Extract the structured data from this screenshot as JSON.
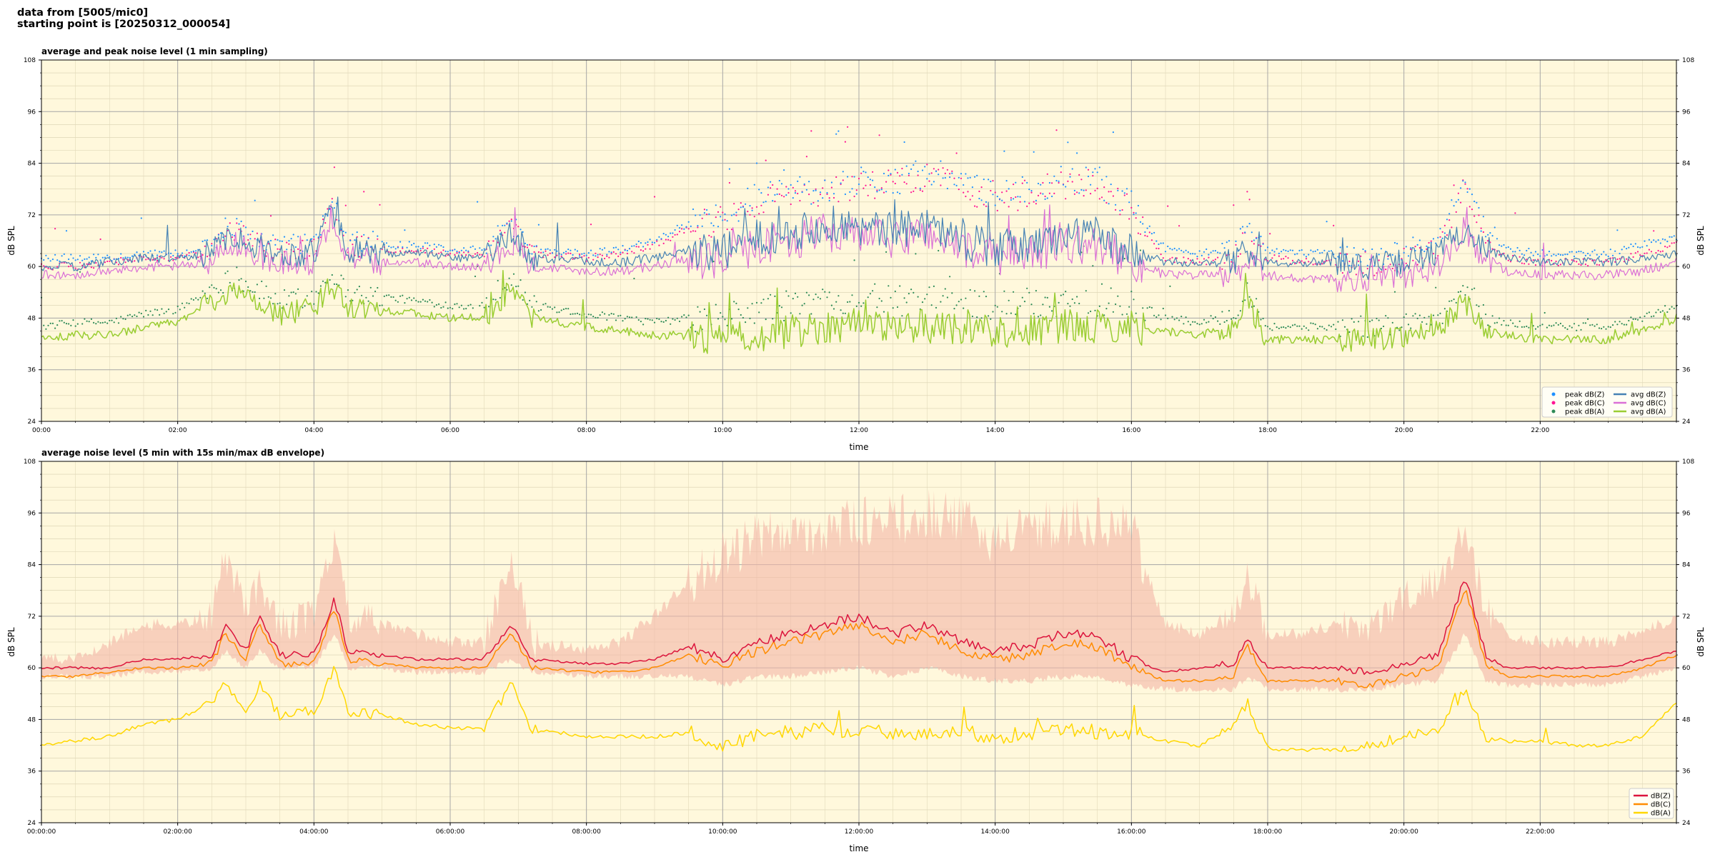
{
  "header": {
    "line1": "data from [5005/mic0]",
    "line2": "starting point is [20250312_000054]"
  },
  "colors": {
    "plot_bg": "#fff8dc",
    "avg_z": "#4682b4",
    "avg_c": "#da70d6",
    "avg_a": "#9acd32",
    "peak_z": "#1e90ff",
    "peak_c": "#ff1493",
    "peak_a": "#2e8b57",
    "env": "#f4b6a6",
    "dbz": "#dc143c",
    "dbc": "#ff8c00",
    "dba": "#ffd700"
  },
  "chart_data": [
    {
      "type": "line",
      "title": "average and peak noise level (1 min sampling)",
      "xlabel": "time",
      "ylabel": "dB SPL",
      "ylim": [
        24,
        108
      ],
      "yticks": [
        "24",
        "36",
        "48",
        "60",
        "72",
        "84",
        "96",
        "108"
      ],
      "xlim_hours": [
        0,
        24
      ],
      "xticks": [
        "00:00",
        "02:00",
        "04:00",
        "06:00",
        "08:00",
        "10:00",
        "12:00",
        "14:00",
        "16:00",
        "18:00",
        "20:00",
        "22:00"
      ],
      "grid": true,
      "legend_placement": "lower-right",
      "hours": [
        0,
        0.5,
        1,
        1.5,
        2,
        2.5,
        2.75,
        3,
        3.25,
        3.5,
        4,
        4.25,
        4.5,
        5,
        5.5,
        6,
        6.5,
        6.9,
        7.2,
        8,
        8.5,
        9,
        9.5,
        10,
        10.5,
        11,
        11.5,
        12,
        12.5,
        13,
        13.5,
        14,
        14.5,
        15,
        15.5,
        16,
        16.5,
        17,
        17.5,
        17.7,
        18,
        18.5,
        19,
        19.5,
        20,
        20.5,
        20.9,
        21.2,
        21.5,
        22,
        22.5,
        23,
        23.5,
        24
      ],
      "series": [
        {
          "name": "avg dB(Z)",
          "values": [
            60,
            60,
            61,
            62,
            62,
            63,
            68,
            66,
            64,
            63,
            63,
            74,
            64,
            63,
            63,
            62,
            62,
            68,
            62,
            61,
            61,
            62,
            64,
            63,
            67,
            68,
            70,
            69,
            68,
            70,
            66,
            64,
            65,
            67,
            67,
            63,
            61,
            61,
            61,
            64,
            61,
            61,
            61,
            60,
            61,
            63,
            69,
            64,
            62,
            61,
            61,
            61,
            62,
            63
          ]
        },
        {
          "name": "avg dB(C)",
          "values": [
            58,
            58,
            59,
            60,
            60,
            61,
            66,
            64,
            62,
            61,
            61,
            72,
            62,
            61,
            61,
            60,
            60,
            66,
            60,
            59,
            59,
            60,
            62,
            61,
            65,
            66,
            68,
            67,
            66,
            68,
            64,
            62,
            63,
            65,
            65,
            61,
            58,
            58,
            58,
            61,
            58,
            57,
            57,
            57,
            58,
            60,
            67,
            62,
            59,
            58,
            58,
            58,
            59,
            61
          ]
        },
        {
          "name": "avg dB(A)",
          "values": [
            43,
            44,
            44,
            46,
            47,
            52,
            54,
            53,
            51,
            49,
            50,
            56,
            51,
            50,
            49,
            48,
            48,
            55,
            48,
            46,
            45,
            44,
            44,
            43,
            44,
            45,
            46,
            47,
            46,
            46,
            46,
            45,
            45,
            46,
            46,
            46,
            45,
            44,
            46,
            52,
            43,
            43,
            43,
            43,
            44,
            45,
            52,
            45,
            44,
            43,
            43,
            43,
            45,
            48
          ]
        },
        {
          "name": "peak dB(Z)",
          "values": [
            62,
            62,
            62,
            63,
            63,
            64,
            70,
            68,
            66,
            65,
            65,
            76,
            66,
            65,
            65,
            64,
            64,
            70,
            64,
            63,
            64,
            66,
            70,
            72,
            76,
            78,
            78,
            80,
            80,
            82,
            80,
            76,
            78,
            80,
            80,
            74,
            64,
            63,
            64,
            70,
            64,
            63,
            63,
            62,
            64,
            66,
            80,
            68,
            64,
            63,
            63,
            63,
            65,
            67
          ]
        },
        {
          "name": "peak dB(C)",
          "values": [
            60,
            60,
            61,
            62,
            62,
            63,
            69,
            67,
            65,
            64,
            64,
            75,
            65,
            64,
            64,
            63,
            63,
            69,
            63,
            62,
            63,
            65,
            69,
            71,
            75,
            77,
            77,
            79,
            79,
            81,
            79,
            75,
            77,
            79,
            79,
            73,
            62,
            61,
            62,
            68,
            62,
            61,
            61,
            60,
            62,
            64,
            79,
            66,
            62,
            61,
            61,
            61,
            63,
            65
          ]
        },
        {
          "name": "peak dB(A)",
          "values": [
            46,
            47,
            47,
            49,
            50,
            55,
            57,
            56,
            54,
            52,
            53,
            59,
            54,
            53,
            52,
            51,
            51,
            58,
            51,
            49,
            48,
            47,
            48,
            48,
            50,
            51,
            52,
            53,
            52,
            52,
            52,
            51,
            51,
            52,
            52,
            52,
            48,
            47,
            49,
            55,
            46,
            46,
            46,
            46,
            47,
            48,
            55,
            48,
            47,
            46,
            46,
            46,
            48,
            51
          ]
        }
      ]
    },
    {
      "type": "line",
      "title": "average noise level (5 min with 15s min/max dB envelope)",
      "xlabel": "time",
      "ylabel": "dB SPL",
      "ylim": [
        24,
        108
      ],
      "yticks": [
        "24",
        "36",
        "48",
        "60",
        "72",
        "84",
        "96",
        "108"
      ],
      "xlim_hours": [
        0,
        24
      ],
      "xticks": [
        "00:00:00",
        "02:00:00",
        "04:00:00",
        "06:00:00",
        "08:00:00",
        "10:00:00",
        "12:00:00",
        "14:00:00",
        "16:00:00",
        "18:00:00",
        "20:00:00",
        "22:00:00"
      ],
      "grid": true,
      "legend_placement": "lower-right",
      "hours": [
        0,
        0.5,
        1,
        1.5,
        2,
        2.5,
        2.7,
        3,
        3.2,
        3.5,
        4,
        4.3,
        4.5,
        5,
        5.5,
        6,
        6.5,
        6.9,
        7.2,
        8,
        8.5,
        9,
        9.5,
        10,
        10.5,
        11,
        11.5,
        12,
        12.5,
        13,
        13.5,
        14,
        14.5,
        15,
        15.5,
        16,
        16.5,
        17,
        17.5,
        17.7,
        18,
        18.5,
        19,
        19.5,
        20,
        20.5,
        20.9,
        21.2,
        21.5,
        22,
        22.5,
        23,
        23.5,
        24
      ],
      "series": [
        {
          "name": "dB(Z)",
          "values": [
            60,
            60,
            60,
            62,
            62,
            63,
            70,
            64,
            72,
            63,
            63,
            76,
            64,
            63,
            62,
            62,
            62,
            70,
            62,
            61,
            61,
            62,
            65,
            62,
            66,
            68,
            70,
            72,
            68,
            70,
            66,
            64,
            65,
            68,
            67,
            62,
            59,
            60,
            61,
            67,
            60,
            60,
            60,
            59,
            61,
            63,
            81,
            63,
            60,
            60,
            60,
            60,
            62,
            64
          ]
        },
        {
          "name": "dB(C)",
          "values": [
            58,
            58,
            59,
            60,
            60,
            61,
            68,
            62,
            70,
            61,
            61,
            74,
            62,
            61,
            60,
            60,
            60,
            68,
            60,
            59,
            59,
            60,
            63,
            60,
            64,
            66,
            68,
            70,
            66,
            68,
            64,
            62,
            63,
            66,
            65,
            60,
            57,
            57,
            58,
            65,
            57,
            57,
            57,
            56,
            58,
            60,
            79,
            61,
            58,
            58,
            58,
            58,
            60,
            63
          ]
        },
        {
          "name": "dB(A)",
          "values": [
            42,
            43,
            44,
            47,
            48,
            52,
            57,
            50,
            56,
            49,
            50,
            60,
            50,
            49,
            47,
            46,
            46,
            56,
            46,
            44,
            44,
            44,
            45,
            42,
            44,
            45,
            46,
            45,
            45,
            45,
            45,
            44,
            45,
            46,
            45,
            45,
            43,
            42,
            46,
            52,
            41,
            41,
            41,
            42,
            44,
            46,
            55,
            44,
            43,
            43,
            42,
            42,
            44,
            52
          ]
        },
        {
          "name": "envelope max",
          "values": [
            62,
            62,
            66,
            70,
            70,
            72,
            86,
            74,
            80,
            70,
            72,
            90,
            72,
            70,
            68,
            66,
            66,
            86,
            66,
            64,
            66,
            72,
            80,
            86,
            90,
            92,
            92,
            94,
            94,
            96,
            94,
            90,
            92,
            94,
            94,
            92,
            70,
            68,
            72,
            82,
            68,
            68,
            70,
            70,
            76,
            80,
            92,
            74,
            68,
            66,
            66,
            66,
            68,
            72
          ]
        },
        {
          "name": "envelope min",
          "values": [
            58,
            58,
            58,
            59,
            59,
            60,
            64,
            60,
            64,
            60,
            60,
            68,
            60,
            60,
            59,
            59,
            59,
            62,
            59,
            58,
            58,
            58,
            58,
            56,
            58,
            58,
            59,
            60,
            58,
            60,
            58,
            57,
            57,
            58,
            58,
            56,
            55,
            55,
            55,
            58,
            55,
            55,
            55,
            55,
            56,
            57,
            68,
            57,
            56,
            56,
            56,
            56,
            58,
            60
          ]
        }
      ]
    }
  ]
}
